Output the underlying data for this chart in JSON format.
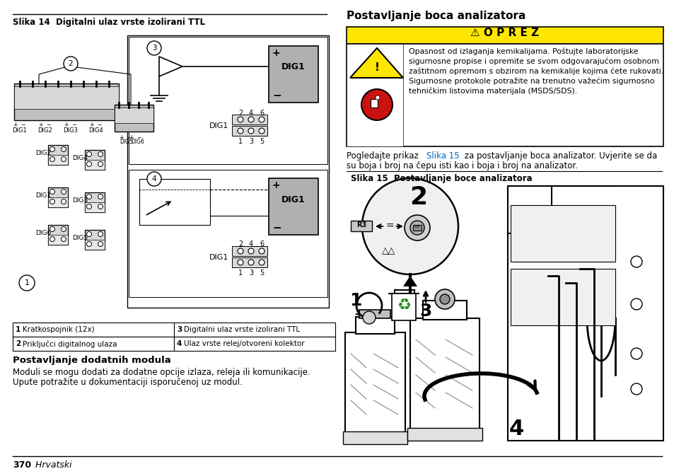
{
  "title_left": "Slika 14  Digitalni ulaz vrste izolirani TTL",
  "title_right": "Postavljanje boca analizatora",
  "warning_title": "⚠ O P R E Z",
  "warning_text_line1": "Opasnost od izlaganja kemikalijama. Poštujte laboratorijske",
  "warning_text_line2": "sigurnosne propise i opremite se svom odgovarajućom osobnom",
  "warning_text_line3": "zaštitnom opremom s obzirom na kemikalije kojima ćete rukovati.",
  "warning_text_line4": "Sigurnosne protokole potražite na trenutno važećim sigurnosno",
  "warning_text_line5": "tehničkim listovima materijala (MSDS/SDS).",
  "para_line1_pre": "Pogledajte prikaz ",
  "para_link": "Slika 15",
  "para_line1_post": " za postavljanje boca analizator. Uvjerite se da",
  "para_line2": "su boja i broj na čepu isti kao i boja i broj na analizator.",
  "slika15_label": "Slika 15  Postavljanje boce analizatora",
  "table_rows": [
    [
      "1",
      "Kratkospojnik (12x)",
      "3",
      "Digitalni ulaz vrste izolirani TTL"
    ],
    [
      "2",
      "Priključci digitalnog ulaza",
      "4",
      "Ulaz vrste relej/otvoreni kolektor"
    ]
  ],
  "bottom_left_title": "Postavljanje dodatnih modula",
  "bottom_left_text_line1": "Moduli se mogu dodati za dodatne opcije izlaza, releja ili komunikacije.",
  "bottom_left_text_line2": "Upute potražite u dokumentaciji isporučenoj uz modul.",
  "footer_bold": "370",
  "footer_italic": "  Hrvatski",
  "warning_bg": "#FFE600",
  "blue_link": "#0066CC",
  "gray_box": "#B0B0B0",
  "light_gray": "#D8D8D8",
  "mid_gray": "#C0C0C0",
  "dark_line": "#000000",
  "table_bg": "#FFFFFF"
}
